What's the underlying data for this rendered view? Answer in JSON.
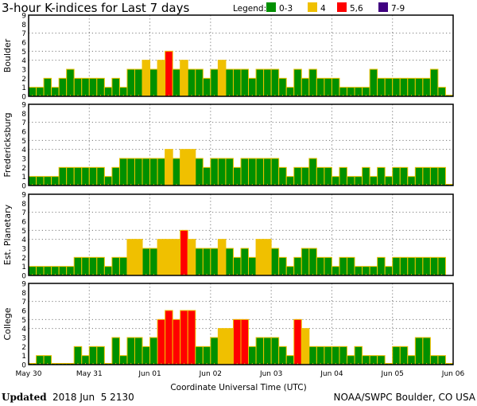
{
  "chart_data": {
    "type": "bar",
    "title": "3-hour K-indices for Last 7 days",
    "xlabel": "Coordinate Universal Time (UTC)",
    "x_tick_labels": [
      "May 30",
      "May 31",
      "Jun 01",
      "Jun 02",
      "Jun 03",
      "Jun 04",
      "Jun 05",
      "Jun 06"
    ],
    "y_ticks": [
      "0",
      "1",
      "2",
      "3",
      "4",
      "5",
      "6",
      "7",
      "8",
      "9"
    ],
    "ylim": [
      0,
      9
    ],
    "grid_levels": [
      4,
      5,
      7
    ],
    "bars_per_day": 8,
    "legend": {
      "label": "Legend:",
      "placement": "top-right",
      "entries": [
        {
          "label": "0-3",
          "color": "#009000"
        },
        {
          "label": "4",
          "color": "#f0c000"
        },
        {
          "label": "5,6",
          "color": "#ff0000"
        },
        {
          "label": "7-9",
          "color": "#400080"
        }
      ]
    },
    "outline_color": "#f0c000",
    "panels": [
      {
        "name": "Boulder",
        "values": [
          1,
          1,
          2,
          1,
          2,
          3,
          2,
          2,
          2,
          2,
          1,
          2,
          1,
          3,
          3,
          4,
          3,
          4,
          5,
          3,
          4,
          3,
          3,
          2,
          3,
          4,
          3,
          3,
          3,
          2,
          3,
          3,
          3,
          2,
          1,
          3,
          2,
          3,
          2,
          2,
          2,
          1,
          1,
          1,
          1,
          3,
          2,
          2,
          2,
          2,
          2,
          2,
          2,
          3,
          1,
          0
        ]
      },
      {
        "name": "Fredericksburg",
        "values": [
          1,
          1,
          1,
          1,
          2,
          2,
          2,
          2,
          2,
          2,
          1,
          2,
          3,
          3,
          3,
          3,
          3,
          3,
          4,
          3,
          4,
          4,
          3,
          2,
          3,
          3,
          3,
          2,
          3,
          3,
          3,
          3,
          3,
          2,
          1,
          2,
          2,
          3,
          2,
          2,
          1,
          2,
          1,
          1,
          2,
          1,
          2,
          1,
          2,
          2,
          1,
          2,
          2,
          2,
          2,
          0
        ]
      },
      {
        "name": "Est. Planetary",
        "values": [
          1,
          1,
          1,
          1,
          1,
          1,
          2,
          2,
          2,
          2,
          1,
          2,
          2,
          4,
          4,
          3,
          3,
          4,
          4,
          4,
          5,
          4,
          3,
          3,
          3,
          4,
          3,
          2,
          3,
          2,
          4,
          4,
          3,
          2,
          1,
          2,
          3,
          3,
          2,
          2,
          1,
          2,
          2,
          1,
          1,
          1,
          2,
          1,
          2,
          2,
          2,
          2,
          2,
          2,
          2,
          null
        ]
      },
      {
        "name": "College",
        "values": [
          0,
          1,
          1,
          0,
          0,
          0,
          2,
          1,
          2,
          2,
          0,
          3,
          1,
          3,
          3,
          2,
          3,
          5,
          6,
          5,
          6,
          6,
          2,
          2,
          3,
          4,
          4,
          5,
          5,
          2,
          3,
          3,
          3,
          2,
          1,
          5,
          4,
          2,
          2,
          2,
          2,
          2,
          1,
          2,
          1,
          1,
          1,
          0,
          2,
          2,
          1,
          3,
          3,
          1,
          1,
          0
        ]
      }
    ]
  },
  "footer": {
    "updated_label": "Updated",
    "updated_value": "2018 Jun  5 2130",
    "source": "NOAA/SWPC Boulder, CO USA"
  }
}
